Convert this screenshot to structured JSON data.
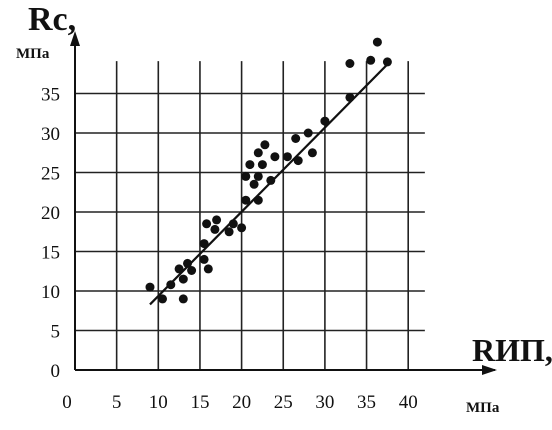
{
  "chart_data": {
    "type": "scatter",
    "title": "",
    "xlabel": "RИП,",
    "xunit": "МПа",
    "ylabel": "Rс,",
    "yunit": "МПа",
    "xlim": [
      0,
      42
    ],
    "ylim": [
      0,
      41
    ],
    "xticks": [
      0,
      5,
      10,
      15,
      20,
      25,
      30,
      35,
      40
    ],
    "yticks": [
      0,
      5,
      10,
      15,
      20,
      25,
      30,
      35
    ],
    "grid": true,
    "series": [
      {
        "points": [
          [
            9.0,
            10.5
          ],
          [
            10.5,
            9.0
          ],
          [
            11.5,
            10.8
          ],
          [
            12.5,
            12.8
          ],
          [
            13.0,
            9.0
          ],
          [
            13.0,
            11.5
          ],
          [
            13.5,
            13.5
          ],
          [
            14.0,
            12.6
          ],
          [
            15.5,
            14.0
          ],
          [
            15.5,
            16.0
          ],
          [
            15.8,
            18.5
          ],
          [
            16.0,
            12.8
          ],
          [
            16.8,
            17.8
          ],
          [
            17.0,
            19.0
          ],
          [
            18.5,
            17.5
          ],
          [
            19.0,
            18.5
          ],
          [
            20.0,
            18.0
          ],
          [
            20.5,
            21.5
          ],
          [
            20.5,
            24.5
          ],
          [
            21.0,
            26.0
          ],
          [
            21.5,
            23.5
          ],
          [
            22.0,
            21.5
          ],
          [
            22.0,
            24.5
          ],
          [
            22.0,
            27.5
          ],
          [
            22.5,
            26.0
          ],
          [
            22.8,
            28.5
          ],
          [
            23.5,
            24.0
          ],
          [
            24.0,
            27.0
          ],
          [
            25.5,
            27.0
          ],
          [
            26.5,
            29.3
          ],
          [
            26.8,
            26.5
          ],
          [
            28.0,
            30.0
          ],
          [
            28.5,
            27.5
          ],
          [
            30.0,
            31.5
          ],
          [
            33.0,
            34.5
          ],
          [
            33.0,
            38.8
          ],
          [
            35.5,
            39.2
          ],
          [
            36.3,
            41.5
          ],
          [
            37.5,
            39.0
          ]
        ]
      }
    ],
    "trendline": {
      "x": [
        9.0,
        37.8
      ],
      "y": [
        8.3,
        39.0
      ]
    }
  }
}
